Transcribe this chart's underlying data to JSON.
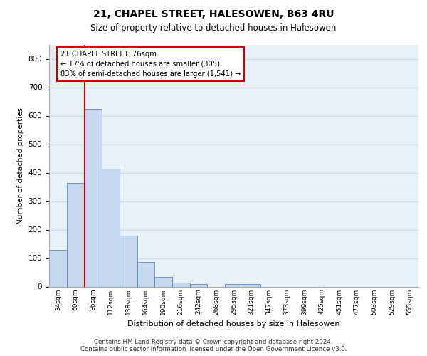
{
  "title1": "21, CHAPEL STREET, HALESOWEN, B63 4RU",
  "title2": "Size of property relative to detached houses in Halesowen",
  "xlabel": "Distribution of detached houses by size in Halesowen",
  "ylabel": "Number of detached properties",
  "bin_labels": [
    "34sqm",
    "60sqm",
    "86sqm",
    "112sqm",
    "138sqm",
    "164sqm",
    "190sqm",
    "216sqm",
    "242sqm",
    "268sqm",
    "295sqm",
    "321sqm",
    "347sqm",
    "373sqm",
    "399sqm",
    "425sqm",
    "451sqm",
    "477sqm",
    "503sqm",
    "529sqm",
    "555sqm"
  ],
  "bar_heights": [
    130,
    365,
    625,
    415,
    178,
    87,
    35,
    15,
    10,
    0,
    10,
    10,
    0,
    0,
    0,
    0,
    0,
    0,
    0,
    0,
    0
  ],
  "bar_color": "#c6d9f0",
  "bar_edge_color": "#5b8ac0",
  "vline_x": 1.53,
  "vline_color": "#cc0000",
  "annotation_text": "21 CHAPEL STREET: 76sqm\n← 17% of detached houses are smaller (305)\n83% of semi-detached houses are larger (1,541) →",
  "annotation_box_color": "#ffffff",
  "annotation_box_edge": "#cc0000",
  "ylim": [
    0,
    850
  ],
  "yticks": [
    0,
    100,
    200,
    300,
    400,
    500,
    600,
    700,
    800
  ],
  "grid_color": "#c8d8ea",
  "background_color": "#e8f0f8",
  "footer1": "Contains HM Land Registry data © Crown copyright and database right 2024.",
  "footer2": "Contains public sector information licensed under the Open Government Licence v3.0."
}
